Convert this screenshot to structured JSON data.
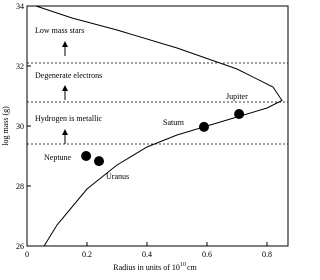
{
  "chart_data": {
    "type": "scatter",
    "x_label": [
      "Radius in units of 10",
      "10",
      "cm"
    ],
    "y_label": "log mass (g)",
    "xlim": [
      0,
      0.87
    ],
    "ylim": [
      26,
      34
    ],
    "xticks": [
      0,
      0.2,
      0.4,
      0.6,
      0.8
    ],
    "yticks": [
      26,
      28,
      30,
      32,
      34
    ],
    "regions": [
      "Low mass stars",
      "Degenerate electrons",
      "Hydrogen is metallic"
    ],
    "hlines": [
      32.1,
      30.8,
      29.4
    ],
    "curve": {
      "x": [
        0.057,
        0.1,
        0.15,
        0.2,
        0.3,
        0.4,
        0.5,
        0.6,
        0.7,
        0.8,
        0.85,
        0.82,
        0.7,
        0.5,
        0.3,
        0.15,
        0.03
      ],
      "values": [
        26,
        26.7,
        27.3,
        27.9,
        28.7,
        29.3,
        29.7,
        30.0,
        30.3,
        30.6,
        30.85,
        31.3,
        31.9,
        32.6,
        33.2,
        33.6,
        34
      ]
    },
    "points": [
      {
        "name": "Neptune",
        "x": 0.197,
        "y": 29.0
      },
      {
        "name": "Uranus",
        "x": 0.24,
        "y": 28.83
      },
      {
        "name": "Saturn",
        "x": 0.59,
        "y": 29.97
      },
      {
        "name": "Jupiter",
        "x": 0.707,
        "y": 30.4
      }
    ],
    "color": "#000000"
  }
}
